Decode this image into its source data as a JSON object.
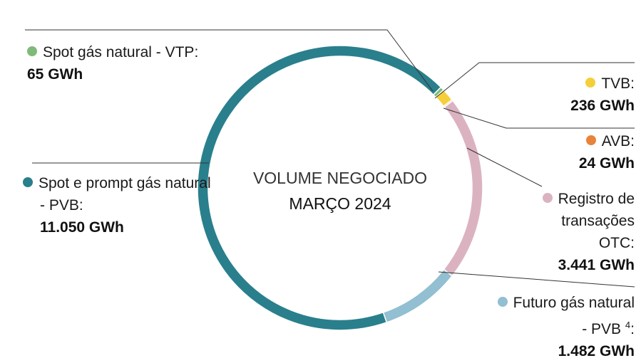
{
  "chart_data": {
    "type": "pie",
    "title": "VOLUME NEGOCIADO",
    "subtitle": "MARÇO 2024",
    "label_suffix": ":",
    "categories": [
      "Spot gás natural - VTP",
      "TVB",
      "AVB",
      "Registro de transações OTC",
      "Futuro gás natural - PVB",
      "Spot e prompt gás natural - PVB"
    ],
    "footnotes": [
      null,
      null,
      null,
      null,
      "4",
      null
    ],
    "values": [
      65,
      236,
      24,
      3441,
      1482,
      11050
    ],
    "value_labels": [
      "65 GWh",
      "236 GWh",
      "24 GWh",
      "3.441 GWh",
      "1.482 GWh",
      "11.050 GWh"
    ],
    "colors": [
      "#7fba7a",
      "#f5cf3a",
      "#e8833a",
      "#dbb3c0",
      "#92bfd1",
      "#2a7f8c"
    ]
  }
}
